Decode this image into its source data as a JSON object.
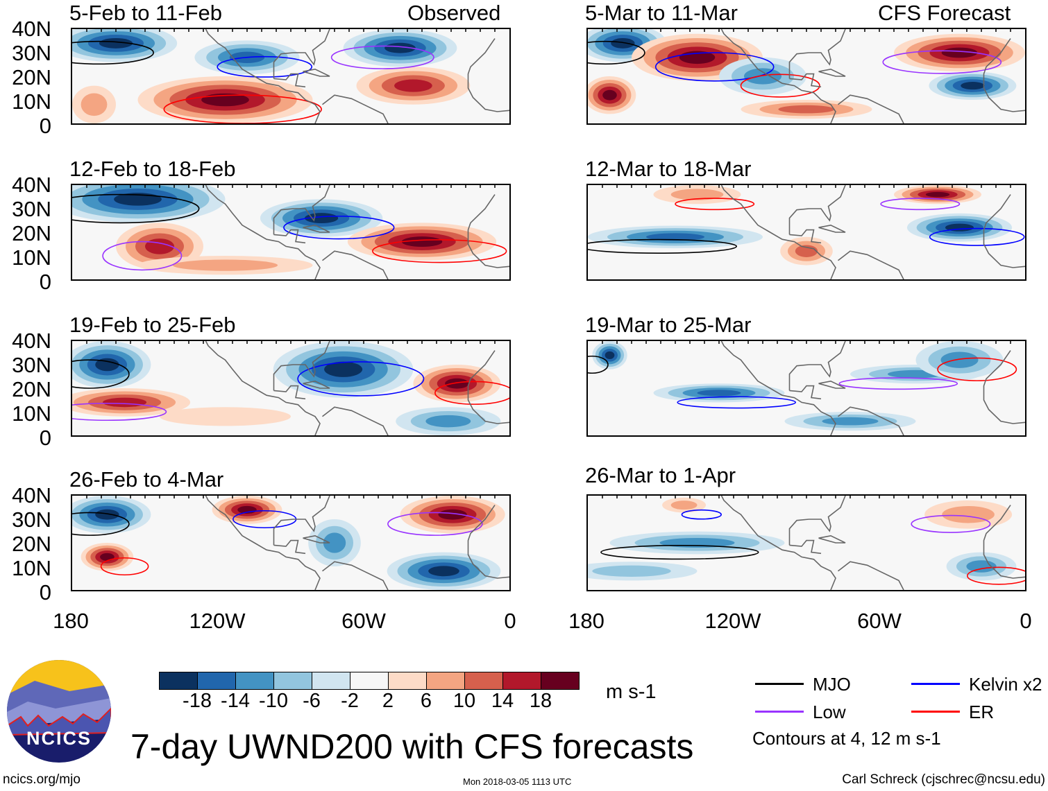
{
  "title": "7-day UWND200 with CFS forecasts",
  "logo_text": "NCICS",
  "footer": {
    "left": "ncics.org/mjo",
    "center": "Mon 2018-03-05 1113 UTC",
    "right": "Carl Schreck (cjschrec@ncsu.edu)"
  },
  "columns": {
    "left_label": "Observed",
    "right_label": "CFS Forecast"
  },
  "panels": {
    "observed": [
      {
        "title": "5-Feb to 11-Feb"
      },
      {
        "title": "12-Feb to 18-Feb"
      },
      {
        "title": "19-Feb to 25-Feb"
      },
      {
        "title": "26-Feb to 4-Mar"
      }
    ],
    "forecast": [
      {
        "title": "5-Mar to 11-Mar"
      },
      {
        "title": "12-Mar to 18-Mar"
      },
      {
        "title": "19-Mar to 25-Mar"
      },
      {
        "title": "26-Mar to 1-Apr"
      }
    ]
  },
  "lat_ticks": [
    "40N",
    "30N",
    "20N",
    "10N",
    "0"
  ],
  "lon_ticks": [
    "180",
    "120W",
    "60W",
    "0"
  ],
  "colorbar": {
    "units": "m s-1",
    "labels": [
      "-18",
      "-14",
      "-10",
      "-6",
      "-2",
      "2",
      "6",
      "10",
      "14",
      "18"
    ],
    "colors": [
      "#0b315f",
      "#2166ac",
      "#4393c3",
      "#92c5de",
      "#d1e5f0",
      "#f7f7f7",
      "#fddbc7",
      "#f4a582",
      "#d6604d",
      "#b2182b",
      "#67001f"
    ]
  },
  "legend": {
    "items": [
      {
        "label": "MJO",
        "color": "#000000"
      },
      {
        "label": "Kelvin x2",
        "color": "#0000ff"
      },
      {
        "label": "Low",
        "color": "#9933ff"
      },
      {
        "label": "ER",
        "color": "#ff0000"
      }
    ],
    "note": "Contours at 4, 12 m s-1"
  }
}
